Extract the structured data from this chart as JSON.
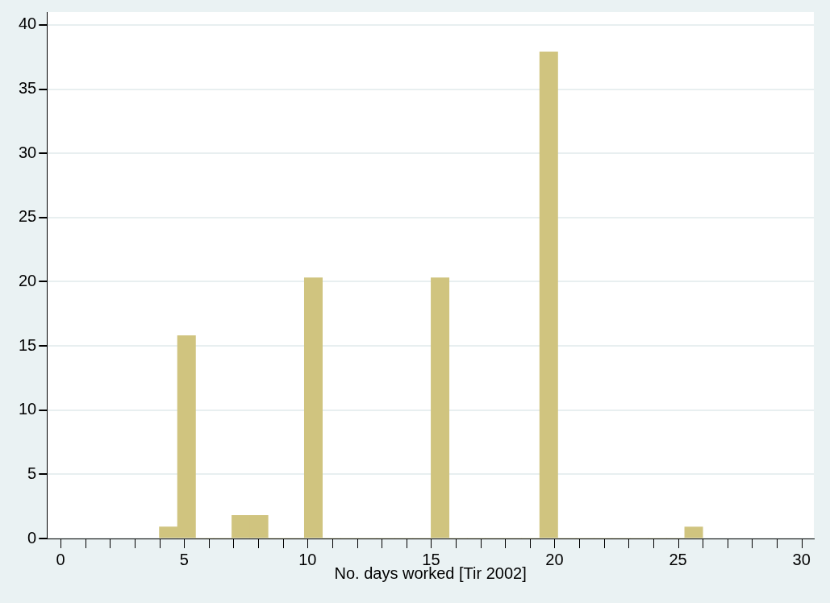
{
  "chart_data": {
    "type": "histogram",
    "xlabel": "No. days worked [Tir 2002]",
    "bins": [
      4,
      4.73,
      5.47,
      6.2,
      6.93,
      7.67,
      8.4,
      9.13,
      9.87,
      10.6,
      11.33,
      12.07,
      12.8,
      13.53,
      14.27,
      15,
      15.73,
      16.47,
      17.2,
      17.93,
      18.67,
      19.4,
      20.13,
      20.87,
      21.6,
      22.33,
      23.07,
      23.8,
      24.53,
      25.27,
      26
    ],
    "values": [
      0.9,
      15.8,
      0,
      0,
      1.8,
      1.8,
      0,
      0,
      20.3,
      0,
      0,
      0,
      0,
      0,
      0,
      20.3,
      0,
      0,
      0,
      0,
      0,
      37.9,
      0,
      0,
      0,
      0,
      0,
      0,
      0,
      0.9
    ],
    "color": "#d0c47f",
    "xlim": [
      -0.55,
      30.5
    ],
    "xticks": [
      0,
      {
        "value": 1,
        "label": null
      },
      {
        "value": 2,
        "label": null
      },
      {
        "value": 3,
        "label": null
      },
      {
        "value": 4,
        "label": null
      },
      5,
      {
        "value": 6,
        "label": null
      },
      {
        "value": 7,
        "label": null
      },
      {
        "value": 8,
        "label": null
      },
      {
        "value": 9,
        "label": null
      },
      10,
      {
        "value": 11,
        "label": null
      },
      {
        "value": 12,
        "label": null
      },
      {
        "value": 13,
        "label": null
      },
      {
        "value": 14,
        "label": null
      },
      15,
      {
        "value": 16,
        "label": null
      },
      {
        "value": 17,
        "label": null
      },
      {
        "value": 18,
        "label": null
      },
      {
        "value": 19,
        "label": null
      },
      20,
      {
        "value": 21,
        "label": null
      },
      {
        "value": 22,
        "label": null
      },
      {
        "value": 23,
        "label": null
      },
      {
        "value": 24,
        "label": null
      },
      25,
      {
        "value": 26,
        "label": null
      },
      {
        "value": 27,
        "label": null
      },
      {
        "value": 28,
        "label": null
      },
      {
        "value": 29,
        "label": null
      },
      30
    ],
    "ylim": [
      0,
      41
    ],
    "yticks": [
      0,
      5,
      10,
      15,
      20,
      25,
      30,
      35,
      40
    ],
    "grid": "y",
    "legend": false
  }
}
